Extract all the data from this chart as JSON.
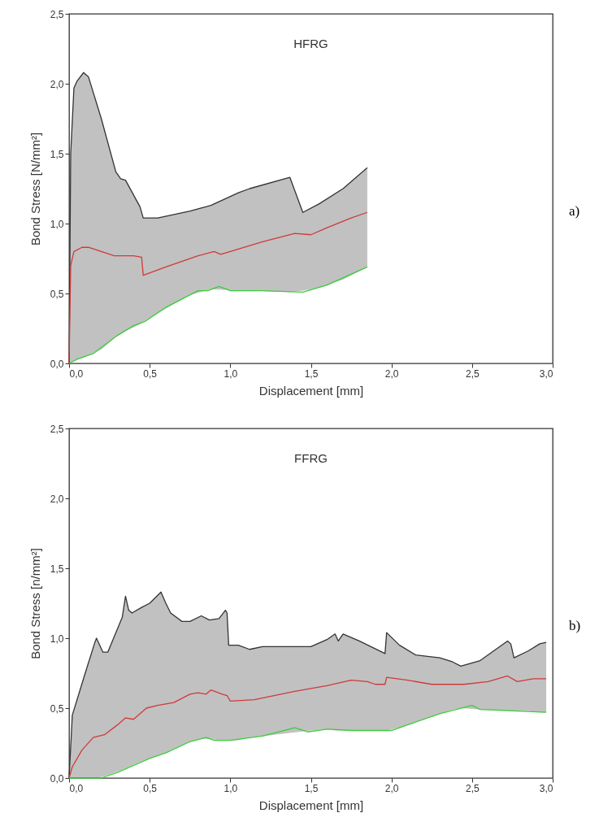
{
  "chart_data": [
    {
      "type": "line",
      "title": "HFRG",
      "xlabel": "Displacement [mm]",
      "ylabel": "Bond Stress [N/mm²]",
      "annotations": [
        "a)"
      ],
      "grid": false,
      "xlim": [
        0,
        3
      ],
      "ylim": [
        0,
        2.5
      ],
      "xticks": [
        {
          "value": 0,
          "label": "0,0"
        },
        {
          "value": 0.5,
          "label": "0,5"
        },
        {
          "value": 1,
          "label": "1,0"
        },
        {
          "value": 1.5,
          "label": "1,5"
        },
        {
          "value": 2,
          "label": "2,0"
        },
        {
          "value": 2.5,
          "label": "2,5"
        },
        {
          "value": 3,
          "label": "3,0"
        }
      ],
      "yticks": [
        {
          "value": 0,
          "label": "0,0"
        },
        {
          "value": 0.5,
          "label": "0,5"
        },
        {
          "value": 1,
          "label": "1,0"
        },
        {
          "value": 1.5,
          "label": "1,5"
        },
        {
          "value": 2,
          "label": "2,0"
        },
        {
          "value": 2.5,
          "label": "2,5"
        }
      ],
      "series": [
        {
          "color": "#333333",
          "x": [
            0,
            0.01,
            0.03,
            0.05,
            0.09,
            0.12,
            0.2,
            0.29,
            0.32,
            0.35,
            0.44,
            0.46,
            0.55,
            0.75,
            0.88,
            1.05,
            1.12,
            1.37,
            1.45,
            1.55,
            1.7,
            1.85
          ],
          "values": [
            0,
            1.5,
            1.97,
            2.02,
            2.08,
            2.05,
            1.75,
            1.37,
            1.32,
            1.31,
            1.12,
            1.04,
            1.04,
            1.09,
            1.13,
            1.22,
            1.25,
            1.33,
            1.08,
            1.14,
            1.25,
            1.4
          ],
          "upper": [
            0,
            1.5,
            1.97,
            2.02,
            2.08,
            2.05,
            1.75,
            1.37,
            1.32,
            1.31,
            1.12,
            1.04,
            1.04,
            1.09,
            1.13,
            1.22,
            1.25,
            1.33,
            1.08,
            1.14,
            1.25,
            1.4
          ],
          "lower": [
            0,
            0.01,
            0.02,
            0.03,
            0.04,
            0.06,
            0.1,
            0.19,
            0.21,
            0.23,
            0.28,
            0.3,
            0.36,
            0.49,
            0.53,
            0.52,
            0.52,
            0.51,
            0.52,
            0.54,
            0.6,
            0.69
          ]
        },
        {
          "color": "#d03a3a",
          "x": [
            0,
            0.01,
            0.03,
            0.08,
            0.12,
            0.2,
            0.28,
            0.4,
            0.45,
            0.46,
            0.6,
            0.8,
            0.9,
            0.94,
            1.0,
            1.2,
            1.4,
            1.5,
            1.6,
            1.75,
            1.85
          ],
          "values": [
            0,
            0.7,
            0.8,
            0.83,
            0.83,
            0.8,
            0.77,
            0.77,
            0.76,
            0.63,
            0.69,
            0.77,
            0.8,
            0.78,
            0.8,
            0.87,
            0.93,
            0.92,
            0.97,
            1.04,
            1.08
          ]
        },
        {
          "color": "#3ccc3c",
          "x": [
            0,
            0.05,
            0.15,
            0.3,
            0.4,
            0.47,
            0.6,
            0.8,
            0.86,
            0.93,
            0.98,
            1.0,
            1.2,
            1.45,
            1.6,
            1.85
          ],
          "values": [
            0,
            0.03,
            0.07,
            0.2,
            0.27,
            0.3,
            0.4,
            0.52,
            0.52,
            0.55,
            0.53,
            0.52,
            0.52,
            0.51,
            0.56,
            0.69
          ]
        }
      ]
    },
    {
      "type": "line",
      "title": "FFRG",
      "xlabel": "Displacement [mm]",
      "ylabel": "Bond Stress [n/mm²]",
      "annotations": [
        "b)"
      ],
      "grid": false,
      "xlim": [
        0,
        3
      ],
      "ylim": [
        0,
        2.5
      ],
      "xticks": [
        {
          "value": 0,
          "label": "0,0"
        },
        {
          "value": 0.5,
          "label": "0,5"
        },
        {
          "value": 1,
          "label": "1,0"
        },
        {
          "value": 1.5,
          "label": "1,5"
        },
        {
          "value": 2,
          "label": "2,0"
        },
        {
          "value": 2.5,
          "label": "2,5"
        },
        {
          "value": 3,
          "label": "3,0"
        }
      ],
      "yticks": [
        {
          "value": 0,
          "label": "0,0"
        },
        {
          "value": 0.5,
          "label": "0,5"
        },
        {
          "value": 1,
          "label": "1,0"
        },
        {
          "value": 1.5,
          "label": "1,5"
        },
        {
          "value": 2,
          "label": "2,0"
        },
        {
          "value": 2.5,
          "label": "2,5"
        }
      ],
      "series": [
        {
          "color": "#333333",
          "x": [
            0,
            0.02,
            0.1,
            0.16,
            0.17,
            0.21,
            0.24,
            0.33,
            0.35,
            0.37,
            0.39,
            0.45,
            0.5,
            0.57,
            0.6,
            0.63,
            0.7,
            0.75,
            0.82,
            0.87,
            0.93,
            0.97,
            0.98,
            0.99,
            1.05,
            1.12,
            1.2,
            1.5,
            1.6,
            1.65,
            1.67,
            1.7,
            1.8,
            1.96,
            1.97,
            2.05,
            2.15,
            2.3,
            2.38,
            2.43,
            2.55,
            2.72,
            2.74,
            2.76,
            2.85,
            2.92,
            2.96
          ],
          "values": [
            0,
            0.45,
            0.75,
            0.97,
            1.0,
            0.9,
            0.9,
            1.15,
            1.3,
            1.2,
            1.18,
            1.22,
            1.25,
            1.33,
            1.25,
            1.18,
            1.12,
            1.12,
            1.16,
            1.13,
            1.14,
            1.2,
            1.18,
            0.95,
            0.95,
            0.92,
            0.94,
            0.94,
            0.99,
            1.03,
            0.98,
            1.03,
            0.98,
            0.89,
            1.04,
            0.95,
            0.88,
            0.86,
            0.83,
            0.8,
            0.84,
            0.98,
            0.96,
            0.86,
            0.91,
            0.96,
            0.97
          ],
          "upper": [
            0,
            0.45,
            0.75,
            0.97,
            1.0,
            0.9,
            0.9,
            1.15,
            1.3,
            1.2,
            1.18,
            1.22,
            1.25,
            1.33,
            1.25,
            1.18,
            1.12,
            1.12,
            1.16,
            1.13,
            1.14,
            1.2,
            1.18,
            0.95,
            0.95,
            0.92,
            0.94,
            0.94,
            0.99,
            1.03,
            0.98,
            1.03,
            0.98,
            0.89,
            1.04,
            0.95,
            0.88,
            0.86,
            0.83,
            0.8,
            0.84,
            0.98,
            0.96,
            0.86,
            0.91,
            0.96,
            0.97
          ],
          "lower": [
            0,
            0,
            0,
            0,
            0,
            0.01,
            0.02,
            0.06,
            0.07,
            0.08,
            0.09,
            0.12,
            0.14,
            0.17,
            0.18,
            0.2,
            0.23,
            0.26,
            0.28,
            0.28,
            0.27,
            0.27,
            0.27,
            0.27,
            0.27,
            0.29,
            0.3,
            0.34,
            0.35,
            0.34,
            0.34,
            0.34,
            0.34,
            0.34,
            0.34,
            0.36,
            0.4,
            0.46,
            0.49,
            0.5,
            0.49,
            0.48,
            0.48,
            0.48,
            0.48,
            0.47,
            0.47
          ]
        },
        {
          "color": "#d03a3a",
          "x": [
            0,
            0.02,
            0.08,
            0.15,
            0.22,
            0.3,
            0.35,
            0.4,
            0.48,
            0.55,
            0.65,
            0.75,
            0.8,
            0.85,
            0.88,
            0.95,
            0.98,
            1.0,
            1.15,
            1.4,
            1.6,
            1.75,
            1.85,
            1.9,
            1.96,
            1.97,
            2.1,
            2.25,
            2.45,
            2.6,
            2.72,
            2.78,
            2.88,
            2.96
          ],
          "values": [
            0,
            0.08,
            0.2,
            0.29,
            0.31,
            0.38,
            0.43,
            0.42,
            0.5,
            0.52,
            0.54,
            0.6,
            0.61,
            0.6,
            0.63,
            0.6,
            0.59,
            0.55,
            0.56,
            0.62,
            0.66,
            0.7,
            0.69,
            0.67,
            0.67,
            0.72,
            0.7,
            0.67,
            0.67,
            0.69,
            0.73,
            0.69,
            0.71,
            0.71
          ]
        },
        {
          "color": "#3ccc3c",
          "x": [
            0,
            0.2,
            0.3,
            0.5,
            0.6,
            0.75,
            0.85,
            0.9,
            1.0,
            1.2,
            1.4,
            1.48,
            1.6,
            1.75,
            2.0,
            2.1,
            2.3,
            2.5,
            2.55,
            2.75,
            2.96
          ],
          "values": [
            0,
            0,
            0.04,
            0.14,
            0.18,
            0.26,
            0.29,
            0.27,
            0.27,
            0.3,
            0.36,
            0.33,
            0.35,
            0.34,
            0.34,
            0.38,
            0.46,
            0.52,
            0.49,
            0.48,
            0.47
          ]
        }
      ]
    }
  ]
}
